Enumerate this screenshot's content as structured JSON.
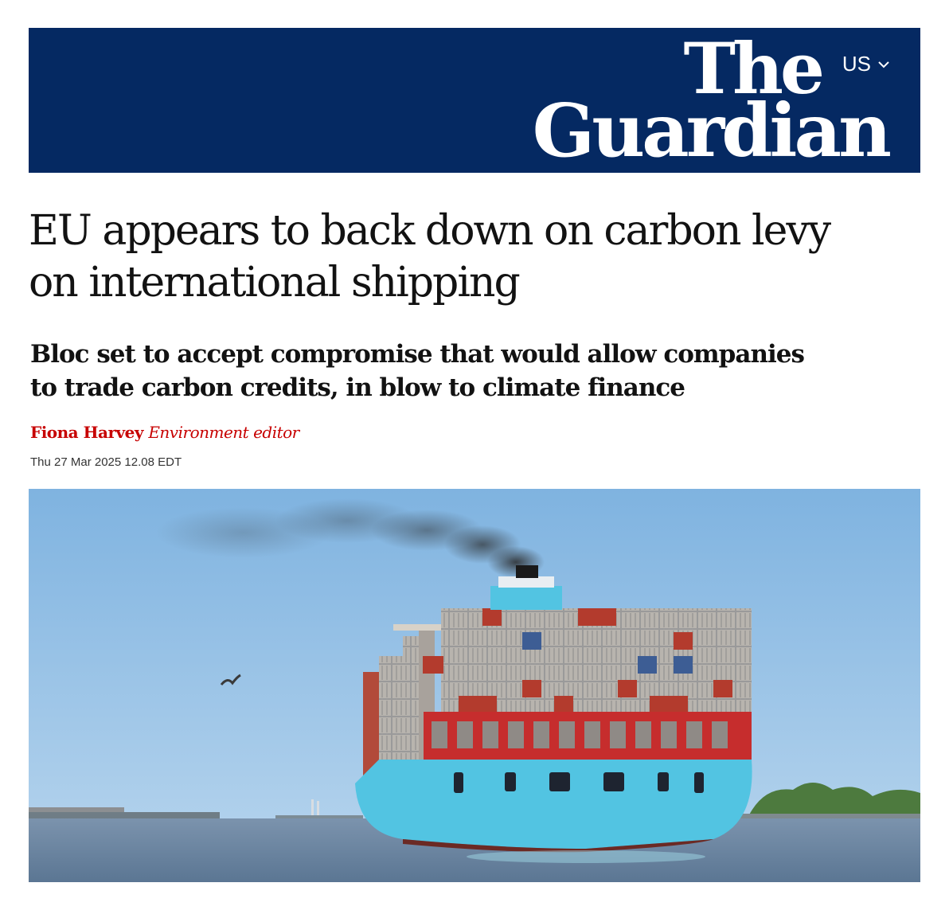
{
  "header": {
    "logo_line1": "The",
    "logo_line2": "Guardian",
    "edition": "US",
    "colors": {
      "masthead": "#052962",
      "text": "#ffffff"
    }
  },
  "article": {
    "headline_line1": "EU appears to back down on carbon levy",
    "headline_line2": "on international shipping",
    "standfirst_line1": "Bloc set to accept compromise that would allow companies",
    "standfirst_line2": "to trade carbon credits, in blow to climate finance",
    "author": "Fiona Harvey",
    "author_role": "Environment editor",
    "date": "Thu 27 Mar 2025 12.08 EDT",
    "accent_color": "#c70000"
  },
  "image": {
    "subject": "container-ship-with-smoke",
    "colors": {
      "sky": "#84b6e0",
      "hull": "#52c4e2",
      "water": "#6c87a6"
    }
  },
  "icons": {
    "edition_toggle": "chevron-down-icon"
  }
}
